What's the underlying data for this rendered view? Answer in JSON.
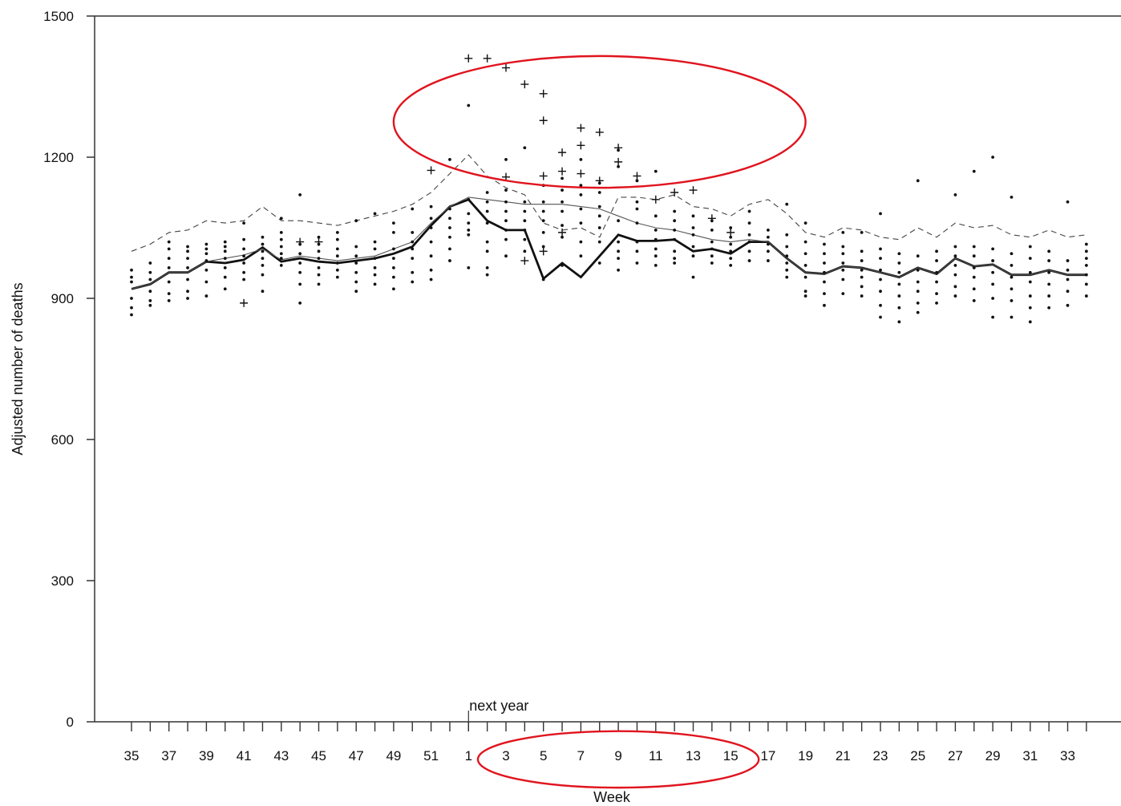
{
  "chart_data": {
    "type": "scatter",
    "title": "",
    "xlabel": "Week",
    "ylabel": "Adjusted number of deaths",
    "ylim": [
      0,
      1500
    ],
    "yticks": [
      0,
      300,
      600,
      900,
      1200,
      1500
    ],
    "grid": false,
    "x_weeks": [
      35,
      36,
      37,
      38,
      39,
      40,
      41,
      42,
      43,
      44,
      45,
      46,
      47,
      48,
      49,
      50,
      51,
      52,
      1,
      2,
      3,
      4,
      5,
      6,
      7,
      8,
      9,
      10,
      11,
      12,
      13,
      14,
      15,
      16,
      17,
      18,
      19,
      20,
      21,
      22,
      23,
      24,
      25,
      26,
      27,
      28,
      29,
      30,
      31,
      32,
      33,
      34
    ],
    "x_tick_labels": [
      "35",
      "37",
      "39",
      "41",
      "43",
      "45",
      "47",
      "49",
      "51",
      "1",
      "3",
      "5",
      "7",
      "9",
      "11",
      "13",
      "15",
      "17",
      "19",
      "21",
      "23",
      "25",
      "27",
      "29",
      "31",
      "33"
    ],
    "annotation": "next year",
    "annotation_at_week": 1,
    "series": [
      {
        "style": "thick-solid",
        "values": [
          920,
          930,
          955,
          955,
          978,
          975,
          982,
          1008,
          978,
          985,
          978,
          975,
          980,
          985,
          995,
          1010,
          1055,
          1095,
          1110,
          1065,
          1045,
          1045,
          942,
          975,
          945,
          990,
          1035,
          1022,
          1022,
          1025,
          1000,
          1005,
          995,
          1020,
          1020,
          985,
          955,
          952,
          968,
          965,
          955,
          945,
          965,
          952,
          985,
          968,
          972,
          950,
          950,
          960,
          950,
          950
        ]
      },
      {
        "style": "thin-solid",
        "values": [
          920,
          930,
          955,
          955,
          978,
          985,
          992,
          1005,
          982,
          990,
          985,
          980,
          985,
          990,
          1005,
          1020,
          1060,
          1095,
          1115,
          1110,
          1105,
          1100,
          1100,
          1100,
          1095,
          1090,
          1075,
          1060,
          1050,
          1045,
          1035,
          1025,
          1020,
          1025,
          1020,
          985,
          955,
          952,
          968,
          965,
          955,
          945,
          965,
          952,
          985,
          968,
          972,
          950,
          950,
          960,
          950,
          950
        ]
      },
      {
        "style": "dashed",
        "values": [
          1000,
          1015,
          1040,
          1045,
          1065,
          1060,
          1065,
          1095,
          1065,
          1065,
          1060,
          1055,
          1065,
          1075,
          1085,
          1100,
          1125,
          1165,
          1205,
          1160,
          1135,
          1120,
          1060,
          1045,
          1050,
          1030,
          1115,
          1115,
          1110,
          1120,
          1095,
          1090,
          1075,
          1100,
          1110,
          1080,
          1040,
          1030,
          1050,
          1045,
          1030,
          1025,
          1050,
          1030,
          1060,
          1050,
          1055,
          1035,
          1030,
          1045,
          1030,
          1035
        ]
      }
    ],
    "scatter_highlights_plus": [
      {
        "week": 1,
        "y": 1410
      },
      {
        "week": 2,
        "y": 1410
      },
      {
        "week": 3,
        "y": 1390
      },
      {
        "week": 4,
        "y": 1355
      },
      {
        "week": 5,
        "y": 1335
      },
      {
        "week": 5,
        "y": 1278
      },
      {
        "week": 7,
        "y": 1262
      },
      {
        "week": 8,
        "y": 1253
      },
      {
        "week": 9,
        "y": 1220
      },
      {
        "week": 6,
        "y": 1210
      },
      {
        "week": 7,
        "y": 1225
      },
      {
        "week": 9,
        "y": 1190
      },
      {
        "week": 6,
        "y": 1170
      },
      {
        "week": 7,
        "y": 1165
      },
      {
        "week": 8,
        "y": 1150
      },
      {
        "week": 5,
        "y": 1160
      },
      {
        "week": 10,
        "y": 1160
      },
      {
        "week": 11,
        "y": 1110
      },
      {
        "week": 12,
        "y": 1125
      },
      {
        "week": 13,
        "y": 1130
      },
      {
        "week": 3,
        "y": 1158
      },
      {
        "week": 51,
        "y": 1172
      },
      {
        "week": 41,
        "y": 890
      },
      {
        "week": 44,
        "y": 1020
      },
      {
        "week": 45,
        "y": 1020
      },
      {
        "week": 4,
        "y": 980
      },
      {
        "week": 5,
        "y": 1000
      },
      {
        "week": 6,
        "y": 1040
      },
      {
        "week": 14,
        "y": 1070
      },
      {
        "week": 15,
        "y": 1040
      }
    ],
    "scatter_dots": [
      {
        "week": 35,
        "y": [
          865,
          880,
          900,
          935,
          945,
          960
        ]
      },
      {
        "week": 36,
        "y": [
          885,
          895,
          915,
          940,
          955,
          975
        ]
      },
      {
        "week": 37,
        "y": [
          895,
          910,
          935,
          965,
          985,
          1005,
          1020
        ]
      },
      {
        "week": 38,
        "y": [
          900,
          915,
          940,
          965,
          985,
          1000,
          1010
        ]
      },
      {
        "week": 39,
        "y": [
          905,
          935,
          960,
          980,
          995,
          1005,
          1015
        ]
      },
      {
        "week": 40,
        "y": [
          920,
          945,
          965,
          985,
          1000,
          1010,
          1020
        ]
      },
      {
        "week": 41,
        "y": [
          940,
          955,
          975,
          990,
          1005,
          1025,
          1060
        ]
      },
      {
        "week": 42,
        "y": [
          915,
          950,
          970,
          985,
          1000,
          1015,
          1030
        ]
      },
      {
        "week": 43,
        "y": [
          970,
          985,
          995,
          1010,
          1025,
          1040,
          1070
        ]
      },
      {
        "week": 44,
        "y": [
          890,
          930,
          955,
          975,
          995,
          1015,
          1120
        ]
      },
      {
        "week": 45,
        "y": [
          930,
          950,
          965,
          985,
          1000,
          1015,
          1030
        ]
      },
      {
        "week": 46,
        "y": [
          945,
          960,
          975,
          990,
          1005,
          1025,
          1040
        ]
      },
      {
        "week": 47,
        "y": [
          915,
          935,
          955,
          975,
          990,
          1010,
          1065
        ]
      },
      {
        "week": 48,
        "y": [
          930,
          950,
          965,
          985,
          1005,
          1020,
          1080
        ]
      },
      {
        "week": 49,
        "y": [
          920,
          945,
          965,
          985,
          1005,
          1040,
          1060
        ]
      },
      {
        "week": 50,
        "y": [
          935,
          955,
          985,
          1005,
          1020,
          1040,
          1090
        ]
      },
      {
        "week": 51,
        "y": [
          940,
          960,
          990,
          1020,
          1050,
          1070,
          1095
        ]
      },
      {
        "week": 52,
        "y": [
          980,
          1005,
          1030,
          1050,
          1070,
          1090,
          1195
        ]
      },
      {
        "week": 1,
        "y": [
          965,
          1035,
          1045,
          1060,
          1080,
          1110,
          1310
        ]
      },
      {
        "week": 2,
        "y": [
          950,
          965,
          1000,
          1020,
          1060,
          1085,
          1105,
          1125
        ]
      },
      {
        "week": 3,
        "y": [
          990,
          1025,
          1045,
          1065,
          1085,
          1105,
          1130,
          1195
        ]
      },
      {
        "week": 4,
        "y": [
          1000,
          1025,
          1045,
          1065,
          1085,
          1105,
          1220
        ]
      },
      {
        "week": 5,
        "y": [
          940,
          1010,
          1040,
          1065,
          1085,
          1105,
          1140
        ]
      },
      {
        "week": 6,
        "y": [
          970,
          1030,
          1055,
          1085,
          1105,
          1130,
          1155
        ]
      },
      {
        "week": 7,
        "y": [
          990,
          1020,
          1060,
          1090,
          1120,
          1140,
          1195
        ]
      },
      {
        "week": 8,
        "y": [
          975,
          1020,
          1050,
          1075,
          1095,
          1125,
          1145
        ]
      },
      {
        "week": 9,
        "y": [
          960,
          985,
          1000,
          1020,
          1065,
          1180,
          1215
        ]
      },
      {
        "week": 10,
        "y": [
          975,
          1000,
          1020,
          1060,
          1090,
          1105,
          1150
        ]
      },
      {
        "week": 11,
        "y": [
          970,
          990,
          1005,
          1025,
          1045,
          1075,
          1170
        ]
      },
      {
        "week": 12,
        "y": [
          975,
          985,
          1000,
          1025,
          1045,
          1065,
          1085
        ]
      },
      {
        "week": 13,
        "y": [
          945,
          990,
          1010,
          1035,
          1050,
          1075
        ]
      },
      {
        "week": 14,
        "y": [
          975,
          990,
          1005,
          1020,
          1045,
          1065
        ]
      },
      {
        "week": 15,
        "y": [
          970,
          985,
          1000,
          1015,
          1030,
          1050
        ]
      },
      {
        "week": 16,
        "y": [
          980,
          1000,
          1020,
          1035,
          1060,
          1085
        ]
      },
      {
        "week": 17,
        "y": [
          980,
          1000,
          1015,
          1030,
          1045
        ]
      },
      {
        "week": 18,
        "y": [
          945,
          960,
          975,
          990,
          1010,
          1035,
          1100
        ]
      },
      {
        "week": 19,
        "y": [
          905,
          915,
          945,
          970,
          995,
          1020,
          1060
        ]
      },
      {
        "week": 20,
        "y": [
          885,
          910,
          935,
          955,
          975,
          995,
          1015
        ]
      },
      {
        "week": 21,
        "y": [
          910,
          940,
          960,
          975,
          995,
          1010,
          1040
        ]
      },
      {
        "week": 22,
        "y": [
          905,
          925,
          945,
          960,
          980,
          1000,
          1040
        ]
      },
      {
        "week": 23,
        "y": [
          860,
          885,
          915,
          940,
          960,
          985,
          1005,
          1080
        ]
      },
      {
        "week": 24,
        "y": [
          850,
          880,
          905,
          930,
          955,
          975,
          995
        ]
      },
      {
        "week": 25,
        "y": [
          870,
          890,
          915,
          935,
          960,
          990,
          1150
        ]
      },
      {
        "week": 26,
        "y": [
          890,
          910,
          935,
          955,
          980,
          1000
        ]
      },
      {
        "week": 27,
        "y": [
          905,
          925,
          950,
          970,
          990,
          1010,
          1120
        ]
      },
      {
        "week": 28,
        "y": [
          895,
          920,
          945,
          965,
          990,
          1010,
          1170
        ]
      },
      {
        "week": 29,
        "y": [
          860,
          900,
          930,
          955,
          980,
          1005,
          1200
        ]
      },
      {
        "week": 30,
        "y": [
          860,
          895,
          920,
          945,
          970,
          995,
          1115
        ]
      },
      {
        "week": 31,
        "y": [
          850,
          880,
          905,
          935,
          955,
          985,
          1010
        ]
      },
      {
        "week": 32,
        "y": [
          880,
          905,
          930,
          955,
          980,
          1000
        ]
      },
      {
        "week": 33,
        "y": [
          885,
          915,
          940,
          960,
          980,
          1105
        ]
      },
      {
        "week": 34,
        "y": [
          905,
          930,
          950,
          970,
          985,
          1000,
          1015
        ]
      }
    ],
    "highlight_ellipses": [
      {
        "center_week": 8,
        "center_y": 1275,
        "x_radius_weeks": 11,
        "y_radius": 140
      },
      {
        "center_week": 9,
        "center_y": -80,
        "x_radius_weeks": 7.5,
        "y_radius": 60
      }
    ],
    "colors": {
      "data": "#111111",
      "axis": "#333333",
      "highlight": "#e0141e"
    }
  }
}
